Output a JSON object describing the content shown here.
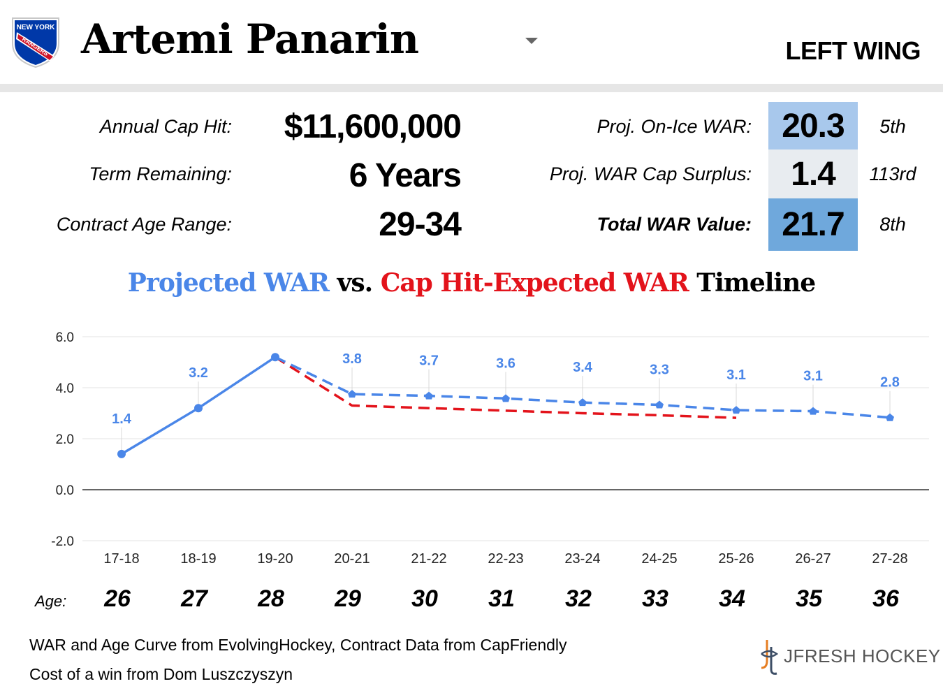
{
  "header": {
    "player_name": "Artemi Panarin",
    "position": "LEFT WING",
    "logo_text_top": "NEW YORK",
    "logo_text_banner": "RANGERS"
  },
  "stats": {
    "cap_hit_label": "Annual Cap Hit:",
    "cap_hit_value": "$11,600,000",
    "term_label": "Term Remaining:",
    "term_value": "6 Years",
    "age_range_label": "Contract Age Range:",
    "age_range_value": "29-34",
    "proj_war_label": "Proj. On-Ice WAR:",
    "proj_war_value": "20.3",
    "proj_war_rank": "5th",
    "surplus_label": "Proj. WAR Cap Surplus:",
    "surplus_value": "1.4",
    "surplus_rank": "113rd",
    "total_label": "Total WAR Value:",
    "total_value": "21.7",
    "total_rank": "8th"
  },
  "colors": {
    "projected": "#4a86e8",
    "expected": "#e3131b",
    "box_proj": "#a8c8ec",
    "box_surplus": "#e8ecf0",
    "box_total": "#6fa8dc"
  },
  "chart_title": {
    "part1": "Projected WAR",
    "part2": " vs. ",
    "part3": "Cap Hit-Expected WAR",
    "part4": " Timeline"
  },
  "chart_data": {
    "type": "line",
    "title": "Projected WAR vs. Cap Hit-Expected WAR Timeline",
    "categories": [
      "17-18",
      "18-19",
      "19-20",
      "20-21",
      "21-22",
      "22-23",
      "23-24",
      "24-25",
      "25-26",
      "26-27",
      "27-28"
    ],
    "ylim": [
      -2.0,
      6.0
    ],
    "yticks": [
      "6.0",
      "4.0",
      "2.0",
      "0.0",
      "-2.0"
    ],
    "grid": true,
    "legend": "none",
    "series": [
      {
        "name": "Projected WAR",
        "values": [
          1.4,
          3.2,
          5.2,
          3.75,
          3.68,
          3.58,
          3.42,
          3.33,
          3.12,
          3.08,
          2.83
        ],
        "labels": [
          "1.4",
          "3.2",
          "",
          "3.8",
          "3.7",
          "3.6",
          "3.4",
          "3.3",
          "3.1",
          "3.1",
          "2.8"
        ]
      },
      {
        "name": "Cap Hit-Expected WAR",
        "values": [
          null,
          null,
          5.2,
          3.3,
          3.2,
          3.1,
          3.0,
          2.92,
          2.82,
          null,
          null
        ]
      }
    ]
  },
  "ages": {
    "label": "Age:",
    "values": [
      "26",
      "27",
      "28",
      "29",
      "30",
      "31",
      "32",
      "33",
      "34",
      "35",
      "36"
    ]
  },
  "footer": {
    "source_line1": "WAR and Age Curve from EvolvingHockey, Contract Data from CapFriendly",
    "source_line2": "Cost of a win from Dom Luszczyszyn",
    "brand": "JFRESH HOCKEY"
  }
}
